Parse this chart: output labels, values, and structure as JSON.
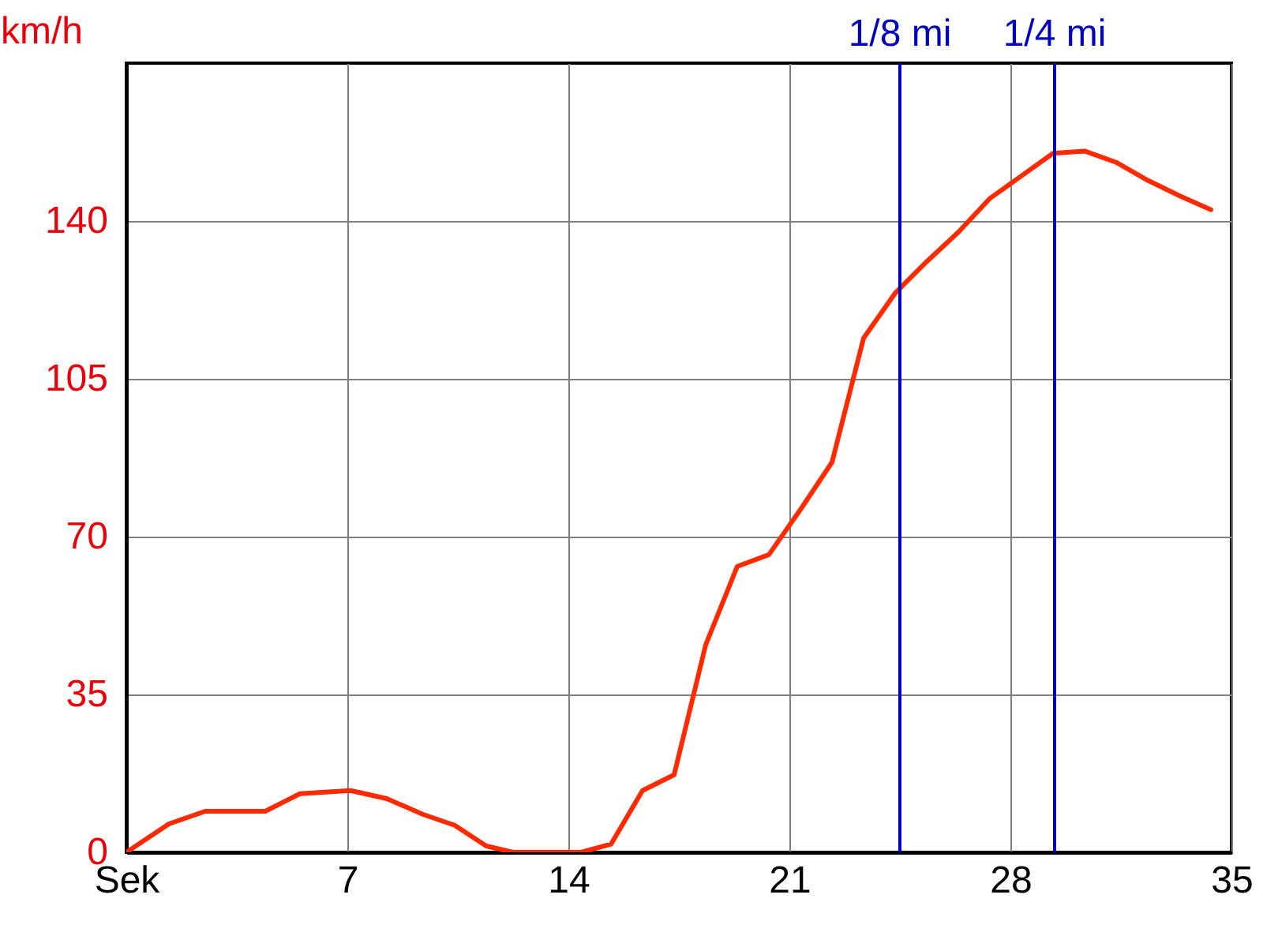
{
  "chart_data": {
    "type": "line",
    "ylabel": "km/h",
    "x": [
      0,
      1.35,
      2.5,
      4.4,
      5.5,
      7.1,
      8.25,
      9.4,
      10.4,
      11.4,
      12.25,
      14.4,
      15.35,
      16.35,
      17.35,
      18.35,
      19.35,
      20.35,
      21.35,
      22.35,
      23.35,
      24.35,
      25.35,
      26.35,
      27.35,
      28.35,
      29.35,
      30.35,
      31.35,
      32.35,
      33.35,
      34.35
    ],
    "series": [
      {
        "color": "#ff2a00",
        "values": [
          0,
          6.3,
          9.1,
          9.1,
          13,
          13.7,
          11.9,
          8.4,
          6,
          1.4,
          0,
          0,
          1.8,
          13.7,
          17.2,
          46,
          63.4,
          66,
          76,
          86.5,
          114,
          124,
          131,
          137.5,
          145,
          150,
          155,
          155.5,
          153,
          149,
          145.6,
          142.5
        ]
      }
    ],
    "xlim": [
      0,
      35
    ],
    "xticks": [
      {
        "value": 0,
        "label": "Sek"
      },
      7,
      14,
      21,
      28,
      35
    ],
    "ylim": [
      0,
      175
    ],
    "yticks": [
      0,
      35,
      70,
      105,
      140
    ],
    "ref_lines": [
      {
        "axis": "x",
        "value": 24.5,
        "label": "1/8 mi",
        "color": "#0000c0"
      },
      {
        "axis": "x",
        "value": 29.4,
        "label": "1/4 mi",
        "color": "#0000c0"
      }
    ],
    "grid": true,
    "marker": "none",
    "line_style": "solid"
  }
}
